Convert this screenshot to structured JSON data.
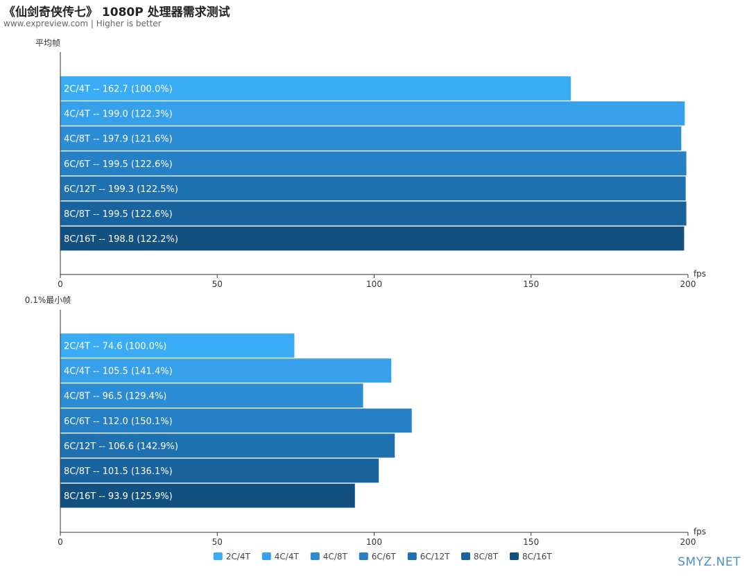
{
  "header": {
    "title": "《仙剑奇侠传七》 1080P 处理器需求测试",
    "subtitle": "www.expreview.com | Higher is better"
  },
  "watermark": "SMYZ.NET",
  "chart_data": [
    {
      "type": "bar",
      "orientation": "horizontal",
      "ylabel": "平均帧",
      "xlabel": "fps",
      "xlim": [
        0,
        200
      ],
      "xticks": [
        0,
        50,
        100,
        150,
        200
      ],
      "grid": false,
      "categories": [
        "2C/4T",
        "4C/4T",
        "4C/8T",
        "6C/6T",
        "6C/12T",
        "8C/8T",
        "8C/16T"
      ],
      "values": [
        162.7,
        199.0,
        197.9,
        199.5,
        199.3,
        199.5,
        198.8
      ],
      "labels": [
        "2C/4T  --  162.7 (100.0%)",
        "4C/4T  --  199.0 (122.3%)",
        "4C/8T  --  197.9 (121.6%)",
        "6C/6T  --  199.5 (122.6%)",
        "6C/12T  --  199.3 (122.5%)",
        "8C/8T  --  199.5 (122.6%)",
        "8C/16T  --  198.8 (122.2%)"
      ]
    },
    {
      "type": "bar",
      "orientation": "horizontal",
      "ylabel": "0.1%最小帧",
      "xlabel": "fps",
      "xlim": [
        0,
        200
      ],
      "xticks": [
        0,
        50,
        100,
        150,
        200
      ],
      "grid": false,
      "categories": [
        "2C/4T",
        "4C/4T",
        "4C/8T",
        "6C/6T",
        "6C/12T",
        "8C/8T",
        "8C/16T"
      ],
      "values": [
        74.6,
        105.5,
        96.5,
        112.0,
        106.6,
        101.5,
        93.9
      ],
      "labels": [
        "2C/4T  --  74.6 (100.0%)",
        "4C/4T  --  105.5 (141.4%)",
        "4C/8T  --  96.5 (129.4%)",
        "6C/6T  --  112.0 (150.1%)",
        "6C/12T  --  106.6 (142.9%)",
        "8C/8T  --  101.5 (136.1%)",
        "8C/16T  --  93.9 (125.9%)"
      ]
    }
  ],
  "legend": {
    "placement": "bottom-center",
    "items": [
      "2C/4T",
      "4C/4T",
      "4C/8T",
      "6C/6T",
      "6C/12T",
      "8C/8T",
      "8C/16T"
    ]
  },
  "colors": [
    "#3aabf5",
    "#36a0ea",
    "#2c8cd4",
    "#2580c5",
    "#1f70af",
    "#19649f",
    "#12507f"
  ]
}
